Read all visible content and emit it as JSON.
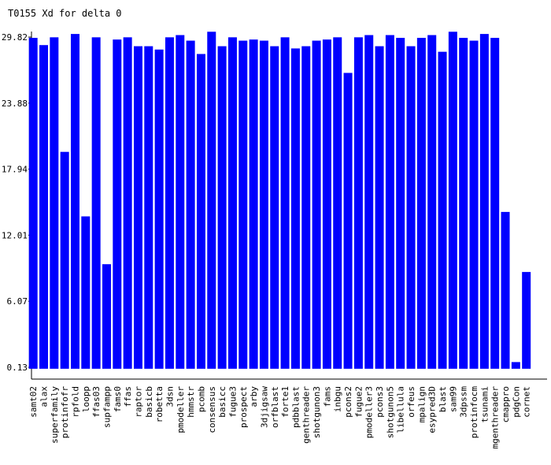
{
  "chart_data": {
    "type": "bar",
    "title": "T0155 Xd for delta 0",
    "categories": [
      "samt02",
      "alax",
      "superfamily",
      "protinfofr",
      "rpfold",
      "loopp",
      "ffas03",
      "supfampp",
      "fams0",
      "ffas",
      "raptor",
      "basicb",
      "robetta",
      "3dsn",
      "pmodeller",
      "hmmstr",
      "pcomb",
      "consensus",
      "basicc",
      "fugue3",
      "prospect",
      "arby",
      "3djigsaw",
      "orfblast",
      "forte1",
      "pdbblast",
      "genthreader",
      "shotgunon3",
      "fams",
      "inbgu",
      "pcons2",
      "fugue2",
      "pmodeller3",
      "pcons3",
      "shotgunon5",
      "libellula",
      "orfeus",
      "mpalign",
      "esypred3D",
      "blast",
      "sam99",
      "3dpssm",
      "protinfocm",
      "tsunami",
      "mgenthreader",
      "cmappro",
      "pdgCon",
      "cornet"
    ],
    "values": [
      29.75,
      29.1,
      29.8,
      19.5,
      30.1,
      13.7,
      29.8,
      9.4,
      29.6,
      29.8,
      29.0,
      29.0,
      28.7,
      29.8,
      30.0,
      29.5,
      28.3,
      30.3,
      29.0,
      29.8,
      29.5,
      29.6,
      29.5,
      29.0,
      29.8,
      28.8,
      29.0,
      29.5,
      29.6,
      29.8,
      26.6,
      29.8,
      30.0,
      29.0,
      30.0,
      29.75,
      29.0,
      29.75,
      30.0,
      28.5,
      30.3,
      29.75,
      29.5,
      30.1,
      29.75,
      14.1,
      0.6,
      8.7
    ],
    "color": "#0000ff",
    "ylim": [
      -0.93,
      30.32
    ],
    "yticks": [
      0.13,
      6.07,
      12.01,
      17.94,
      23.88,
      29.82
    ],
    "grid": false
  }
}
